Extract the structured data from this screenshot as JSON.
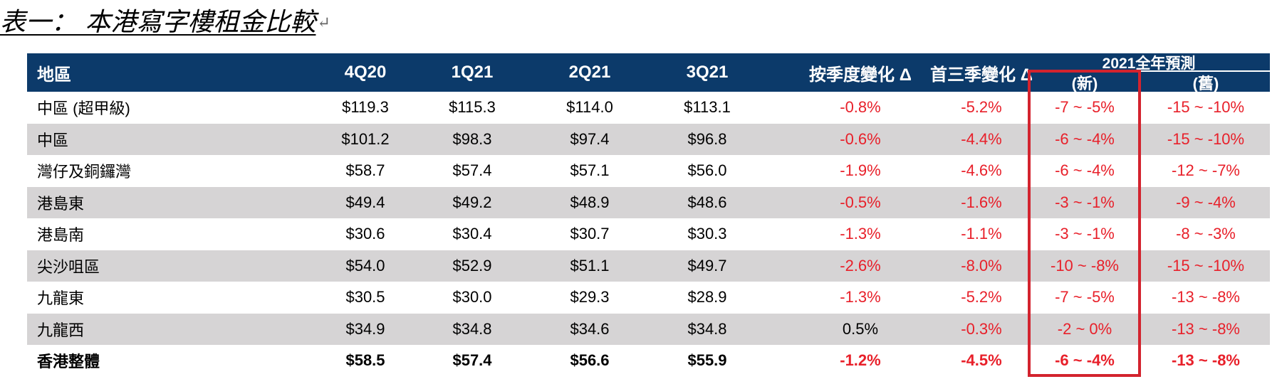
{
  "title": "表一： 本港寫字樓租金比較",
  "title_mark": "↵",
  "header": {
    "region": "地區",
    "q4q20": "4Q20",
    "q1q21": "1Q21",
    "q2q21": "2Q21",
    "q3q21": "3Q21",
    "qoq": "按季度變化 Δ",
    "ytd": "首三季變化 Δ",
    "forecast_group": "2021全年預測",
    "forecast_new": "(新)",
    "forecast_old": "(舊)"
  },
  "rows": [
    {
      "region": "中區 (超甲級)",
      "q4q20": "$119.3",
      "q1q21": "$115.3",
      "q2q21": "$114.0",
      "q3q21": "$113.1",
      "qoq": "-0.8%",
      "ytd": "-5.2%",
      "new": "-7 ~ -5%",
      "old": "-15 ~ -10%"
    },
    {
      "region": "中區",
      "q4q20": "$101.2",
      "q1q21": "$98.3",
      "q2q21": "$97.4",
      "q3q21": "$96.8",
      "qoq": "-0.6%",
      "ytd": "-4.4%",
      "new": "-6 ~ -4%",
      "old": "-15 ~ -10%"
    },
    {
      "region": "灣仔及銅鑼灣",
      "q4q20": "$58.7",
      "q1q21": "$57.4",
      "q2q21": "$57.1",
      "q3q21": "$56.0",
      "qoq": "-1.9%",
      "ytd": "-4.6%",
      "new": "-6 ~ -4%",
      "old": "-12 ~ -7%"
    },
    {
      "region": "港島東",
      "q4q20": "$49.4",
      "q1q21": "$49.2",
      "q2q21": "$48.9",
      "q3q21": "$48.6",
      "qoq": "-0.5%",
      "ytd": "-1.6%",
      "new": "-3 ~ -1%",
      "old": "-9 ~ -4%"
    },
    {
      "region": "港島南",
      "q4q20": "$30.6",
      "q1q21": "$30.4",
      "q2q21": "$30.7",
      "q3q21": "$30.3",
      "qoq": "-1.3%",
      "ytd": "-1.1%",
      "new": "-3 ~ -1%",
      "old": "-8 ~ -3%"
    },
    {
      "region": "尖沙咀區",
      "q4q20": "$54.0",
      "q1q21": "$52.9",
      "q2q21": "$51.1",
      "q3q21": "$49.7",
      "qoq": "-2.6%",
      "ytd": "-8.0%",
      "new": "-10 ~ -8%",
      "old": "-15 ~ -10%"
    },
    {
      "region": "九龍東",
      "q4q20": "$30.5",
      "q1q21": "$30.0",
      "q2q21": "$29.3",
      "q3q21": "$28.9",
      "qoq": "-1.3%",
      "ytd": "-5.2%",
      "new": "-7 ~ -5%",
      "old": "-13 ~ -8%"
    },
    {
      "region": "九龍西",
      "q4q20": "$34.9",
      "q1q21": "$34.8",
      "q2q21": "$34.6",
      "q3q21": "$34.8",
      "qoq": "0.5%",
      "ytd": "-0.3%",
      "new": "-2 ~ 0%",
      "old": "-13 ~ -8%"
    },
    {
      "region": "香港整體",
      "q4q20": "$58.5",
      "q1q21": "$57.4",
      "q2q21": "$56.6",
      "q3q21": "$55.9",
      "qoq": "-1.2%",
      "ytd": "-4.5%",
      "new": "-6 ~ -4%",
      "old": "-13 ~ -8%"
    }
  ],
  "colors": {
    "header_bg": "#0c3a6a",
    "shade_bg": "#d6d4d5",
    "negative": "#e8202a",
    "highlight_border": "#d3232e"
  }
}
